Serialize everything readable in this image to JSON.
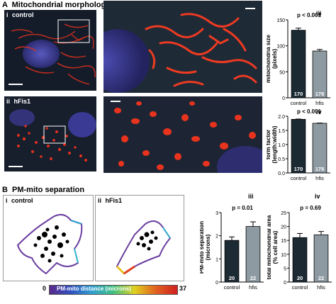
{
  "panelA": {
    "letter": "A",
    "title": "Mitochondrial morphology",
    "sub_i": "i",
    "label_i": "control",
    "sub_ii": "ii",
    "label_ii": "hFis1",
    "sub_iii": "iii",
    "sub_iv": "iv"
  },
  "panelB": {
    "letter": "B",
    "title": "PM-mito separation",
    "sub_i": "i",
    "label_i": "control",
    "sub_ii": "ii",
    "label_ii": "hFis1",
    "sub_iii": "iii",
    "sub_iv": "iv",
    "colorbar_min": "0",
    "colorbar_label": "PM-mito distance (microns)",
    "colorbar_max": "37"
  },
  "colors": {
    "control_bar": "#1b2a33",
    "hfis_bar": "#8e9aa2",
    "mito_red": "#e0301c",
    "nucleus_blue": "#3d3d9e"
  },
  "chart_data": [
    {
      "id": "A-iii",
      "type": "bar",
      "categories": [
        "control",
        "hfis"
      ],
      "values": [
        130,
        90
      ],
      "errors": [
        4,
        3
      ],
      "n_labels": [
        "170",
        "178"
      ],
      "ylabel": "mitochondria size (pixels)",
      "ylim": [
        0,
        150
      ],
      "yticks": [
        0,
        50,
        100,
        150
      ],
      "annotation": "p < 0.001"
    },
    {
      "id": "A-iv",
      "type": "bar",
      "categories": [
        "control",
        "hfis"
      ],
      "values": [
        1.89,
        1.75
      ],
      "errors": [
        0.01,
        0.01
      ],
      "n_labels": [
        "170",
        "178"
      ],
      "ylabel": "form factor (length:width)",
      "ylim": [
        0,
        2.0
      ],
      "yticks": [
        0.0,
        0.5,
        1.0,
        1.5,
        2.0
      ],
      "annotation": "p < 0.001"
    },
    {
      "id": "B-iii",
      "type": "bar",
      "categories": [
        "control",
        "hfis"
      ],
      "values": [
        1.8,
        2.4
      ],
      "errors": [
        0.15,
        0.2
      ],
      "n_labels": [
        "20",
        "22"
      ],
      "ylabel": "PM-mito separation (microns)",
      "ylim": [
        0,
        3
      ],
      "yticks": [
        0,
        1,
        2,
        3
      ],
      "annotation": "p = 0.01"
    },
    {
      "id": "B-iv",
      "type": "bar",
      "categories": [
        "control",
        "hfis"
      ],
      "values": [
        16,
        17
      ],
      "errors": [
        1.5,
        1.2
      ],
      "n_labels": [
        "20",
        "22"
      ],
      "ylabel": "total mitochondrial area (% cell area)",
      "ylim": [
        0,
        25
      ],
      "yticks": [
        0,
        5,
        10,
        15,
        20,
        25
      ],
      "annotation": "p = 0.69"
    }
  ]
}
